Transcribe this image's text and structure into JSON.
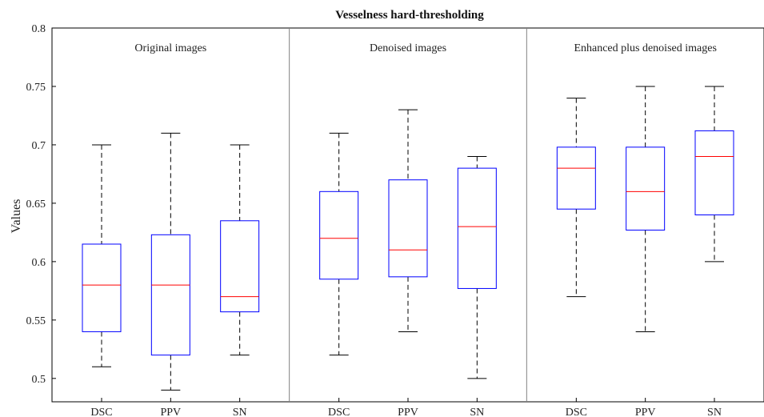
{
  "chart_data": {
    "type": "box",
    "title": "Vesselness hard-thresholding",
    "ylabel": "Values",
    "xlabel": "",
    "ylim": [
      0.48,
      0.8
    ],
    "yticks": [
      0.5,
      0.55,
      0.6,
      0.65,
      0.7,
      0.75,
      0.8
    ],
    "ytick_labels": [
      "0.5",
      "0.55",
      "0.6",
      "0.65",
      "0.7",
      "0.75",
      "0.8"
    ],
    "grid": false,
    "colors": {
      "box": "#0000ff",
      "median": "#ff0000",
      "whisker": "#000000",
      "separator": "#808080"
    },
    "groups": [
      {
        "label": "Original images",
        "categories": [
          "DSC",
          "PPV",
          "SN"
        ],
        "boxes": [
          {
            "min": 0.51,
            "q1": 0.54,
            "median": 0.58,
            "q3": 0.615,
            "max": 0.7
          },
          {
            "min": 0.49,
            "q1": 0.52,
            "median": 0.58,
            "q3": 0.623,
            "max": 0.71
          },
          {
            "min": 0.52,
            "q1": 0.557,
            "median": 0.57,
            "q3": 0.635,
            "max": 0.7
          }
        ]
      },
      {
        "label": "Denoised images",
        "categories": [
          "DSC",
          "PPV",
          "SN"
        ],
        "boxes": [
          {
            "min": 0.52,
            "q1": 0.585,
            "median": 0.62,
            "q3": 0.66,
            "max": 0.71
          },
          {
            "min": 0.54,
            "q1": 0.587,
            "median": 0.61,
            "q3": 0.67,
            "max": 0.73
          },
          {
            "min": 0.5,
            "q1": 0.577,
            "median": 0.63,
            "q3": 0.68,
            "max": 0.69
          }
        ]
      },
      {
        "label": "Enhanced plus denoised images",
        "categories": [
          "DSC",
          "PPV",
          "SN"
        ],
        "boxes": [
          {
            "min": 0.57,
            "q1": 0.645,
            "median": 0.68,
            "q3": 0.698,
            "max": 0.74
          },
          {
            "min": 0.54,
            "q1": 0.627,
            "median": 0.66,
            "q3": 0.698,
            "max": 0.75
          },
          {
            "min": 0.6,
            "q1": 0.64,
            "median": 0.69,
            "q3": 0.712,
            "max": 0.75
          }
        ]
      }
    ]
  }
}
